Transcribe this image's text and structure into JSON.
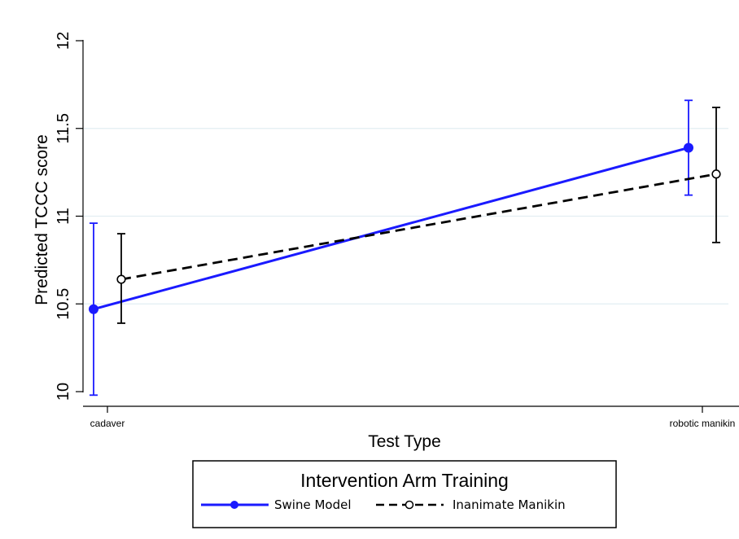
{
  "chart_data": {
    "type": "line",
    "title": "",
    "xlabel": "Test Type",
    "ylabel": "Predicted TCCC score",
    "categories": [
      "cadaver",
      "robotic manikin"
    ],
    "ylim": [
      10,
      12
    ],
    "yticks": [
      10,
      10.5,
      11,
      11.5,
      12
    ],
    "ytick_labels": [
      "10",
      "10.5",
      "11",
      "11.5",
      "12"
    ],
    "grid": true,
    "legend": {
      "title": "Intervention Arm Training",
      "position": "bottom"
    },
    "series": [
      {
        "name": "Swine Model",
        "values": [
          10.47,
          11.39
        ],
        "ci_low": [
          9.98,
          11.12
        ],
        "ci_high": [
          10.96,
          11.66
        ],
        "color": "#1a1aff",
        "marker": "filled-circle",
        "line": "solid"
      },
      {
        "name": "Inanimate Manikin",
        "values": [
          10.64,
          11.24
        ],
        "ci_low": [
          10.39,
          10.85
        ],
        "ci_high": [
          10.9,
          11.62
        ],
        "color": "#000000",
        "marker": "hollow-circle",
        "line": "dashed"
      }
    ]
  }
}
